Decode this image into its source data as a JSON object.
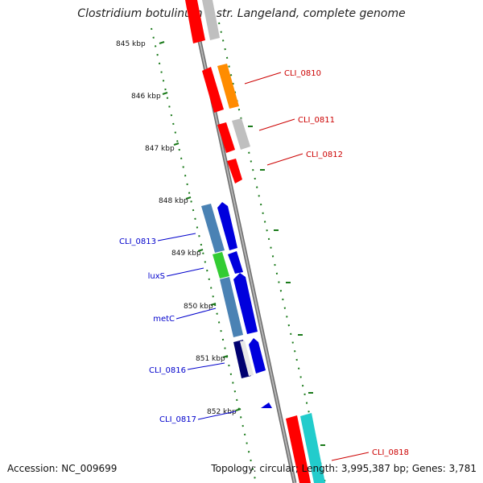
{
  "title": "Clostridium botulinum F str. Langeland, complete genome",
  "accession": "Accession: NC_009699",
  "topology": "Topology: circular; Length: 3,995,387 bp; Genes: 3,781",
  "colors": {
    "backbone": "#8c8c8c",
    "ticks": "#1a7a1a",
    "forward_label": "#cc0000",
    "reverse_label": "#0000cc"
  },
  "kbp_ticks": [
    "845 kbp",
    "846 kbp",
    "847 kbp",
    "848 kbp",
    "849 kbp",
    "850 kbp",
    "851 kbp",
    "852 kbp"
  ],
  "gene_labels": [
    {
      "text": "CLI_0810",
      "strand": "forward"
    },
    {
      "text": "CLI_0811",
      "strand": "forward"
    },
    {
      "text": "CLI_0812",
      "strand": "forward"
    },
    {
      "text": "CLI_0813",
      "strand": "reverse"
    },
    {
      "text": "luxS",
      "strand": "reverse"
    },
    {
      "text": "metC",
      "strand": "reverse"
    },
    {
      "text": "CLI_0816",
      "strand": "reverse"
    },
    {
      "text": "CLI_0817",
      "strand": "reverse"
    },
    {
      "text": "CLI_0818",
      "strand": "forward"
    }
  ]
}
